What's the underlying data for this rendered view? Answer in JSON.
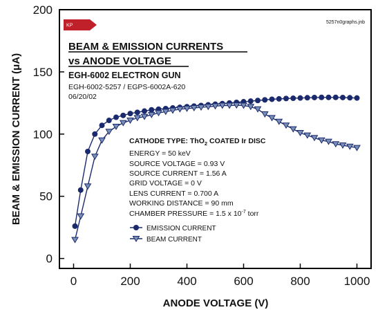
{
  "header": {
    "logo_text": "KP",
    "filename": "5257n0graphs.jnb",
    "title_line1": "BEAM & EMISSION CURRENTS",
    "title_line2": "vs ANODE VOLTAGE",
    "subtitle": "EGH-6002 ELECTRON GUN",
    "model_line": "EGH-6002-5257 / EGPS-6002A-620",
    "date": "06/20/02"
  },
  "parameters": {
    "cathode_label": "CATHODE TYPE:  ThO",
    "cathode_sub": "2",
    "cathode_rest": " COATED Ir DISC",
    "energy": "ENERGY = 50 keV",
    "source_voltage": "SOURCE VOLTAGE = 0.93 V",
    "source_current": "SOURCE CURRENT = 1.56 A",
    "grid_voltage": "GRID VOLTAGE = 0 V",
    "lens_current": "LENS CURRENT = 0.700 A",
    "working_distance": "WORKING DISTANCE = 90 mm",
    "chamber_pressure_prefix": "CHAMBER PRESSURE = 1.5 x 10",
    "chamber_pressure_exp": "-7",
    "chamber_pressure_unit": " torr"
  },
  "colors": {
    "series": "#1a2a6c",
    "logo": "#c0202a",
    "axis": "#000000"
  },
  "chart_data": {
    "type": "line",
    "xlabel": "ANODE VOLTAGE (V)",
    "ylabel": "BEAM & EMISSION CURRENT (μA)",
    "xlim": [
      -50,
      1050
    ],
    "ylim": [
      -8,
      200
    ],
    "xticks": [
      0,
      200,
      400,
      600,
      800,
      1000
    ],
    "yticks": [
      0,
      50,
      100,
      150,
      200
    ],
    "xtick_labels": [
      "0",
      "200",
      "400",
      "600",
      "800",
      "1000"
    ],
    "ytick_labels": [
      "0",
      "50",
      "100",
      "150",
      "200"
    ],
    "grid": false,
    "legend_position": "inside-center-left",
    "series": [
      {
        "name": "EMISSION CURRENT",
        "marker": "circle",
        "x": [
          5,
          25,
          50,
          75,
          100,
          125,
          150,
          175,
          200,
          225,
          250,
          275,
          300,
          325,
          350,
          375,
          400,
          425,
          450,
          475,
          500,
          525,
          550,
          575,
          600,
          625,
          650,
          675,
          700,
          725,
          750,
          775,
          800,
          825,
          850,
          875,
          900,
          925,
          950,
          975,
          1000
        ],
        "y": [
          26,
          55,
          86,
          100,
          107,
          111,
          113.5,
          115,
          116.5,
          117.5,
          118.5,
          119.5,
          120,
          120.5,
          121,
          121.5,
          122,
          122.5,
          123,
          123.5,
          124,
          124.5,
          125,
          125.5,
          126,
          126.5,
          127,
          127.5,
          128,
          128.3,
          128.6,
          128.8,
          129,
          129.2,
          129.4,
          129.5,
          129.5,
          129.5,
          129.4,
          129.2,
          129
        ]
      },
      {
        "name": "BEAM CURRENT",
        "marker": "triangle-down",
        "x": [
          5,
          25,
          50,
          75,
          100,
          125,
          150,
          175,
          200,
          225,
          250,
          275,
          300,
          325,
          350,
          375,
          400,
          425,
          450,
          475,
          500,
          525,
          550,
          575,
          600,
          625,
          650,
          675,
          700,
          725,
          750,
          775,
          800,
          825,
          850,
          875,
          900,
          925,
          950,
          975,
          1000
        ],
        "y": [
          15,
          34,
          58,
          82,
          95,
          102,
          106,
          109,
          111,
          113,
          114,
          115.5,
          117,
          118,
          119,
          120,
          120.5,
          121,
          121.5,
          122,
          122.5,
          123,
          123,
          123.2,
          123,
          122,
          120,
          116,
          113,
          110,
          107,
          104,
          101,
          99,
          97,
          95,
          94,
          92,
          91,
          90,
          89
        ]
      }
    ]
  }
}
